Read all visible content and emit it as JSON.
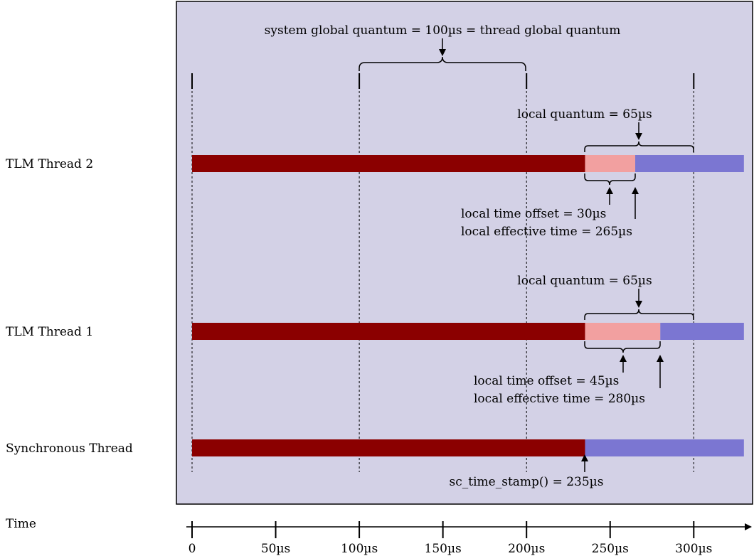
{
  "colors": {
    "panel_bg": "#d3d1e6",
    "elapsed": "#8b0000",
    "offset": "#f2a0a0",
    "remaining": "#7b76d2",
    "ink": "#000000"
  },
  "threads": [
    {
      "label": "TLM Thread 2",
      "elapsed_until": 235,
      "offset_until": 265
    },
    {
      "label": "TLM Thread 1",
      "elapsed_until": 235,
      "offset_until": 280
    },
    {
      "label": "Synchronous Thread",
      "elapsed_until": 235,
      "offset_until": 235
    }
  ],
  "time_range": [
    0,
    330
  ],
  "quantum_boundaries": [
    0,
    100,
    200,
    300
  ],
  "annotations": {
    "global_quantum": "system global quantum = 100µs = thread global quantum",
    "t2_local_quantum": "local quantum = 65µs",
    "t2_offset": "local time offset = 30µs",
    "t2_effective": "local effective time = 265µs",
    "t1_local_quantum": "local quantum = 65µs",
    "t1_offset": "local time offset = 45µs",
    "t1_effective": "local effective time = 280µs",
    "timestamp": "sc_time_stamp() = 235µs"
  },
  "axis": {
    "label": "Time",
    "ticks": [
      "0",
      "50µs",
      "100µs",
      "150µs",
      "200µs",
      "250µs",
      "300µs"
    ],
    "tick_values": [
      0,
      50,
      100,
      150,
      200,
      250,
      300
    ]
  }
}
